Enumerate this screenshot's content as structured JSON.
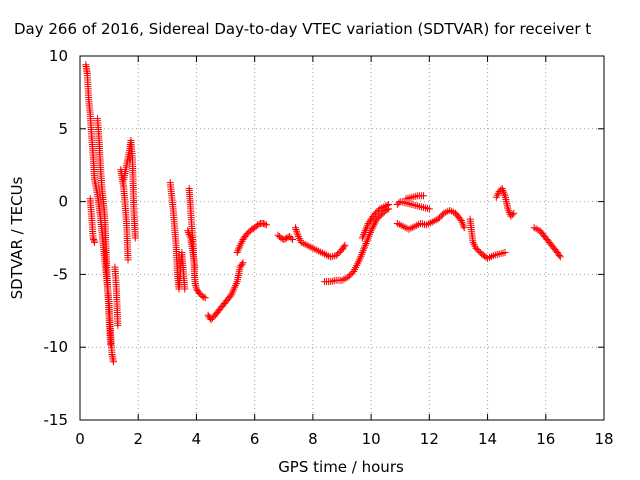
{
  "chart_data": {
    "type": "scatter",
    "title": "Day 266 of 2016, Sidereal Day-to-day VTEC variation (SDTVAR) for receiver t",
    "xlabel": "GPS time / hours",
    "ylabel": "SDTVAR / TECUs",
    "xlim": [
      0,
      18
    ],
    "ylim": [
      -15,
      10
    ],
    "xticks": [
      0,
      2,
      4,
      6,
      8,
      10,
      12,
      14,
      16,
      18
    ],
    "yticks": [
      -15,
      -10,
      -5,
      0,
      5,
      10
    ],
    "grid": true,
    "legend": "none",
    "marker": "+",
    "color": "#ff0000",
    "series": [
      {
        "segments": [
          [
            [
              0.2,
              9.4
            ],
            [
              0.25,
              8.8
            ],
            [
              0.3,
              7.0
            ],
            [
              0.35,
              6.0
            ],
            [
              0.4,
              4.5
            ],
            [
              0.45,
              3.2
            ],
            [
              0.5,
              1.5
            ],
            [
              0.6,
              0.5
            ],
            [
              0.7,
              -1.0
            ],
            [
              0.8,
              -3.0
            ],
            [
              0.9,
              -5.0
            ],
            [
              1.0,
              -7.0
            ],
            [
              1.05,
              -9.0
            ],
            [
              1.1,
              -10.5
            ],
            [
              1.15,
              -11.0
            ]
          ],
          [
            [
              0.35,
              0.2
            ],
            [
              0.4,
              -1.0
            ],
            [
              0.45,
              -2.5
            ],
            [
              0.5,
              -2.8
            ]
          ],
          [
            [
              0.6,
              5.7
            ],
            [
              0.65,
              4.5
            ],
            [
              0.7,
              2.5
            ],
            [
              0.75,
              1.0
            ],
            [
              0.8,
              0.0
            ],
            [
              0.85,
              -1.0
            ],
            [
              0.9,
              -3.5
            ],
            [
              0.95,
              -6.0
            ],
            [
              1.0,
              -8.0
            ],
            [
              1.05,
              -9.8
            ]
          ],
          [
            [
              1.2,
              -4.5
            ],
            [
              1.25,
              -6.0
            ],
            [
              1.3,
              -8.5
            ]
          ],
          [
            [
              1.4,
              2.2
            ],
            [
              1.5,
              1.0
            ],
            [
              1.6,
              -1.5
            ],
            [
              1.65,
              -4.0
            ]
          ],
          [
            [
              1.5,
              1.5
            ],
            [
              1.6,
              2.5
            ],
            [
              1.7,
              3.5
            ],
            [
              1.75,
              4.2
            ],
            [
              1.8,
              3.0
            ],
            [
              1.85,
              -0.5
            ],
            [
              1.9,
              -2.5
            ]
          ],
          [
            [
              3.1,
              1.3
            ],
            [
              3.2,
              -0.5
            ],
            [
              3.3,
              -3.0
            ],
            [
              3.35,
              -5.0
            ],
            [
              3.4,
              -6.0
            ],
            [
              3.5,
              -3.5
            ],
            [
              3.6,
              -6.0
            ]
          ],
          [
            [
              3.75,
              0.9
            ],
            [
              3.8,
              -0.5
            ],
            [
              3.85,
              -2.0
            ],
            [
              3.9,
              -3.5
            ],
            [
              3.95,
              -5.5
            ],
            [
              4.0,
              -6.0
            ],
            [
              4.1,
              -6.3
            ],
            [
              4.2,
              -6.5
            ],
            [
              4.3,
              -6.6
            ]
          ],
          [
            [
              3.7,
              -2.0
            ],
            [
              3.8,
              -2.5
            ],
            [
              3.9,
              -3.8
            ],
            [
              3.95,
              -4.5
            ]
          ],
          [
            [
              4.4,
              -7.8
            ],
            [
              4.5,
              -8.1
            ],
            [
              4.6,
              -7.9
            ],
            [
              4.8,
              -7.4
            ],
            [
              5.0,
              -6.9
            ],
            [
              5.2,
              -6.4
            ],
            [
              5.4,
              -5.5
            ],
            [
              5.5,
              -4.5
            ],
            [
              5.6,
              -4.2
            ]
          ],
          [
            [
              5.4,
              -3.5
            ],
            [
              5.5,
              -3.0
            ],
            [
              5.6,
              -2.6
            ],
            [
              5.7,
              -2.3
            ],
            [
              5.8,
              -2.1
            ],
            [
              5.9,
              -1.9
            ],
            [
              6.0,
              -1.8
            ],
            [
              6.1,
              -1.6
            ],
            [
              6.2,
              -1.5
            ],
            [
              6.3,
              -1.5
            ],
            [
              6.4,
              -1.6
            ]
          ],
          [
            [
              6.8,
              -2.3
            ],
            [
              6.9,
              -2.5
            ],
            [
              7.0,
              -2.6
            ],
            [
              7.1,
              -2.5
            ],
            [
              7.2,
              -2.4
            ],
            [
              7.3,
              -2.6
            ]
          ],
          [
            [
              7.4,
              -1.8
            ],
            [
              7.5,
              -2.4
            ],
            [
              7.6,
              -2.8
            ],
            [
              7.8,
              -3.0
            ],
            [
              8.0,
              -3.2
            ],
            [
              8.2,
              -3.4
            ],
            [
              8.4,
              -3.6
            ],
            [
              8.6,
              -3.8
            ],
            [
              8.8,
              -3.7
            ],
            [
              9.0,
              -3.3
            ],
            [
              9.1,
              -3.0
            ]
          ],
          [
            [
              8.4,
              -5.5
            ],
            [
              8.6,
              -5.5
            ],
            [
              8.8,
              -5.4
            ],
            [
              9.0,
              -5.4
            ],
            [
              9.2,
              -5.2
            ],
            [
              9.4,
              -4.8
            ],
            [
              9.6,
              -4.0
            ],
            [
              9.8,
              -3.0
            ],
            [
              10.0,
              -2.0
            ],
            [
              10.2,
              -1.2
            ],
            [
              10.4,
              -0.8
            ],
            [
              10.5,
              -0.6
            ],
            [
              10.6,
              -0.5
            ]
          ],
          [
            [
              9.7,
              -2.5
            ],
            [
              9.9,
              -1.5
            ],
            [
              10.1,
              -0.9
            ],
            [
              10.3,
              -0.5
            ],
            [
              10.5,
              -0.3
            ],
            [
              10.6,
              -0.2
            ]
          ],
          [
            [
              10.9,
              -0.2
            ],
            [
              11.0,
              0.0
            ],
            [
              11.2,
              -0.1
            ],
            [
              11.4,
              -0.2
            ],
            [
              11.6,
              -0.3
            ],
            [
              11.8,
              -0.4
            ],
            [
              12.0,
              -0.5
            ]
          ],
          [
            [
              11.2,
              0.2
            ],
            [
              11.4,
              0.3
            ],
            [
              11.6,
              0.4
            ],
            [
              11.8,
              0.4
            ]
          ],
          [
            [
              10.9,
              -1.5
            ],
            [
              11.1,
              -1.7
            ],
            [
              11.3,
              -1.9
            ],
            [
              11.5,
              -1.7
            ],
            [
              11.7,
              -1.5
            ],
            [
              11.9,
              -1.6
            ],
            [
              12.1,
              -1.4
            ],
            [
              12.3,
              -1.2
            ],
            [
              12.5,
              -0.8
            ],
            [
              12.7,
              -0.6
            ],
            [
              12.9,
              -0.8
            ],
            [
              13.1,
              -1.3
            ],
            [
              13.2,
              -1.8
            ]
          ],
          [
            [
              13.4,
              -1.2
            ],
            [
              13.5,
              -2.8
            ],
            [
              13.6,
              -3.2
            ],
            [
              13.8,
              -3.6
            ],
            [
              14.0,
              -3.9
            ],
            [
              14.2,
              -3.7
            ],
            [
              14.4,
              -3.6
            ],
            [
              14.6,
              -3.5
            ]
          ],
          [
            [
              14.3,
              0.3
            ],
            [
              14.4,
              0.7
            ],
            [
              14.5,
              0.9
            ],
            [
              14.6,
              0.4
            ],
            [
              14.7,
              -0.5
            ],
            [
              14.8,
              -1.0
            ],
            [
              14.9,
              -0.8
            ]
          ],
          [
            [
              15.6,
              -1.8
            ],
            [
              15.8,
              -2.0
            ],
            [
              16.0,
              -2.5
            ],
            [
              16.2,
              -3.0
            ],
            [
              16.4,
              -3.5
            ],
            [
              16.5,
              -3.8
            ]
          ]
        ]
      }
    ]
  }
}
